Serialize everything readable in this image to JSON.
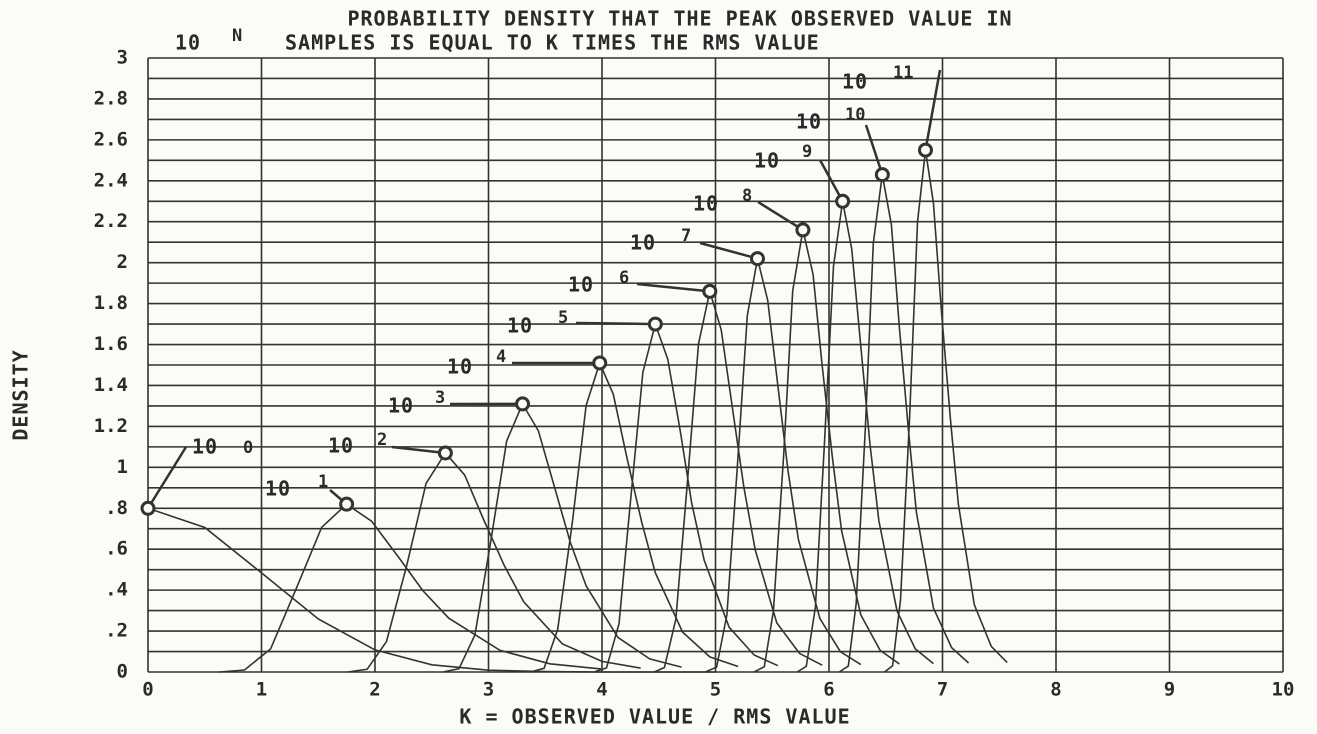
{
  "chart_data": {
    "type": "line",
    "title": {
      "line1": "PROBABILITY DENSITY THAT THE PEAK OBSERVED VALUE IN",
      "line2_base": "10",
      "line2_exponent": "N",
      "line2_rest": "SAMPLES IS EQUAL TO K TIMES THE RMS VALUE"
    },
    "x_label": "K = OBSERVED VALUE / RMS VALUE",
    "y_label": "DENSITY",
    "xlim": [
      0,
      10
    ],
    "ylim": [
      0,
      3
    ],
    "xticks": [
      0,
      1,
      2,
      3,
      4,
      5,
      6,
      7,
      8,
      9,
      10
    ],
    "yticks": [
      0,
      {
        "value": 0.2,
        "label": ".2"
      },
      {
        "value": 0.4,
        "label": ".4"
      },
      {
        "value": 0.6,
        "label": ".6"
      },
      {
        "value": 0.8,
        "label": ".8"
      },
      1,
      1.2,
      1.4,
      1.6,
      1.8,
      2,
      2.2,
      2.4,
      2.6,
      2.8,
      3
    ],
    "yminor": [
      0.1,
      0.3,
      0.5,
      0.7,
      0.9,
      1.1,
      1.3,
      1.5,
      1.7,
      1.9,
      2.1,
      2.3,
      2.5,
      2.7,
      2.9
    ],
    "grid": true,
    "color": "#333333",
    "series": [
      {
        "name": "10",
        "exponent": "0",
        "peak_index": 0,
        "x": [
          0,
          0.5,
          1,
          1.5,
          2,
          2.5,
          3,
          3.5,
          4,
          5
        ],
        "values": [
          0.8,
          0.706,
          0.484,
          0.259,
          0.108,
          0.035,
          0.009,
          0.002,
          0,
          0
        ]
      },
      {
        "name": "10",
        "exponent": "1",
        "peak_index": 5,
        "x": [
          0.63,
          0.85,
          1.08,
          1.3,
          1.53,
          1.75,
          1.97,
          2.2,
          2.42,
          2.65,
          3.1,
          3.54,
          3.99
        ],
        "values": [
          0,
          0.01,
          0.113,
          0.4,
          0.707,
          0.82,
          0.737,
          0.567,
          0.398,
          0.263,
          0.106,
          0.04,
          0.015
        ]
      },
      {
        "name": "10",
        "exponent": "2",
        "peak_index": 5,
        "x": [
          1.76,
          1.93,
          2.1,
          2.28,
          2.45,
          2.62,
          2.79,
          2.96,
          3.14,
          3.31,
          3.65,
          4.0,
          4.34
        ],
        "values": [
          0,
          0.013,
          0.148,
          0.522,
          0.922,
          1.07,
          0.962,
          0.74,
          0.519,
          0.343,
          0.138,
          0.052,
          0.019
        ]
      },
      {
        "name": "10",
        "exponent": "3",
        "peak_index": 5,
        "x": [
          2.6,
          2.74,
          2.88,
          3.02,
          3.16,
          3.3,
          3.44,
          3.58,
          3.72,
          3.86,
          4.14,
          4.42,
          4.7
        ],
        "values": [
          0,
          0.016,
          0.181,
          0.639,
          1.129,
          1.31,
          1.178,
          0.907,
          0.635,
          0.421,
          0.169,
          0.064,
          0.024
        ]
      },
      {
        "name": "10",
        "exponent": "4",
        "peak_index": 5,
        "x": [
          3.37,
          3.49,
          3.61,
          3.74,
          3.86,
          3.98,
          4.1,
          4.22,
          4.35,
          4.47,
          4.71,
          4.95,
          5.2
        ],
        "values": [
          0,
          0.018,
          0.208,
          0.737,
          1.302,
          1.51,
          1.357,
          1.045,
          0.732,
          0.485,
          0.195,
          0.074,
          0.027
        ]
      },
      {
        "name": "10",
        "exponent": "5",
        "peak_index": 5,
        "x": [
          3.93,
          4.04,
          4.15,
          4.25,
          4.36,
          4.47,
          4.58,
          4.69,
          4.79,
          4.9,
          5.12,
          5.34,
          5.55
        ],
        "values": [
          0,
          0.02,
          0.235,
          0.83,
          1.465,
          1.7,
          1.528,
          1.176,
          0.825,
          0.546,
          0.219,
          0.083,
          0.031
        ]
      },
      {
        "name": "10",
        "exponent": "6",
        "peak_index": 5,
        "x": [
          4.46,
          4.55,
          4.65,
          4.75,
          4.85,
          4.95,
          5.05,
          5.15,
          5.25,
          5.35,
          5.54,
          5.74,
          5.94
        ],
        "values": [
          0,
          0.022,
          0.257,
          0.908,
          1.603,
          1.86,
          1.672,
          1.287,
          0.902,
          0.597,
          0.24,
          0.091,
          0.033
        ]
      },
      {
        "name": "10",
        "exponent": "7",
        "peak_index": 5,
        "x": [
          4.91,
          5.01,
          5.1,
          5.19,
          5.28,
          5.37,
          5.46,
          5.55,
          5.64,
          5.73,
          5.92,
          6.1,
          6.28
        ],
        "values": [
          0,
          0.024,
          0.279,
          0.986,
          1.741,
          2.02,
          1.816,
          1.398,
          0.98,
          0.648,
          0.261,
          0.099,
          0.036
        ]
      },
      {
        "name": "10",
        "exponent": "8",
        "peak_index": 5,
        "x": [
          5.34,
          5.43,
          5.51,
          5.6,
          5.68,
          5.77,
          5.86,
          5.94,
          6.03,
          6.11,
          6.28,
          6.45,
          6.62
        ],
        "values": [
          0,
          0.026,
          0.298,
          1.054,
          1.862,
          2.16,
          1.942,
          1.495,
          1.048,
          0.693,
          0.279,
          0.106,
          0.039
        ]
      },
      {
        "name": "10",
        "exponent": "9",
        "peak_index": 5,
        "x": [
          5.72,
          5.8,
          5.88,
          5.96,
          6.04,
          6.12,
          6.2,
          6.28,
          6.36,
          6.44,
          6.6,
          6.76,
          6.92
        ],
        "values": [
          0,
          0.028,
          0.317,
          1.122,
          1.983,
          2.3,
          2.068,
          1.592,
          1.116,
          0.738,
          0.297,
          0.113,
          0.041
        ]
      },
      {
        "name": "10",
        "exponent": "10",
        "peak_index": 5,
        "x": [
          6.09,
          6.17,
          6.24,
          6.32,
          6.39,
          6.47,
          6.55,
          6.62,
          6.7,
          6.77,
          6.92,
          7.08,
          7.23
        ],
        "values": [
          0,
          0.029,
          0.335,
          1.186,
          2.095,
          2.43,
          2.185,
          1.682,
          1.179,
          0.78,
          0.313,
          0.119,
          0.044
        ]
      },
      {
        "name": "10",
        "exponent": "11",
        "peak_index": 5,
        "x": [
          6.49,
          6.56,
          6.63,
          6.71,
          6.78,
          6.85,
          6.92,
          6.99,
          7.07,
          7.14,
          7.28,
          7.43,
          7.57
        ],
        "values": [
          0,
          0.031,
          0.352,
          1.244,
          2.198,
          2.55,
          2.292,
          1.765,
          1.237,
          0.819,
          0.329,
          0.125,
          0.046
        ]
      }
    ]
  }
}
